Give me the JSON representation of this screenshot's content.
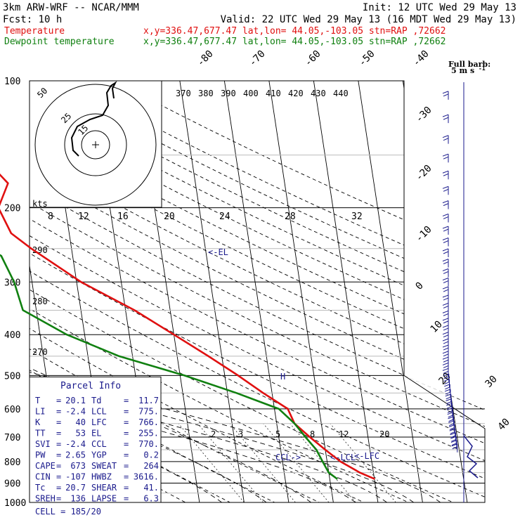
{
  "header": {
    "model": "3km ARW-WRF -- NCAR/MMM",
    "init": "Init: 12 UTC Wed 29 May 13",
    "fcst": "Fcst:   10 h",
    "valid": "Valid: 22 UTC Wed 29 May 13 (16 MDT Wed 29 May 13)",
    "temp_label": "Temperature",
    "dew_label": "Dewpoint temperature",
    "temp_loc": "x,y=336.47,677.47   lat,lon= 44.05,-103.05  stn=RAP ,72662",
    "dew_loc": "x,y=336.47,677.47   lat,lon= 44.05,-103.05  stn=RAP ,72662"
  },
  "colors": {
    "temperature": "#e01010",
    "dewpoint": "#108010",
    "text_blue": "#1a1a8c",
    "grid": "#000000"
  },
  "barb_legend": {
    "title": "Full barb:",
    "value": "5 m s",
    "superscript": "-1"
  },
  "hodograph": {
    "ring_labels": [
      "50",
      "25",
      "15"
    ],
    "speed_labels": [
      "8",
      "12",
      "16",
      "20",
      "24",
      "28",
      "32"
    ],
    "kts_label": "kts"
  },
  "parcel": {
    "title": "Parcel Info",
    "rows": [
      [
        {
          "k": "T",
          "v": "20.1"
        },
        {
          "k": "Td",
          "v": "11.7"
        }
      ],
      [
        {
          "k": "LI",
          "v": "-2.4"
        },
        {
          "k": "LCL",
          "v": "775."
        }
      ],
      [
        {
          "k": "K",
          "v": "40"
        },
        {
          "k": "LFC",
          "v": "766."
        }
      ],
      [
        {
          "k": "TT",
          "v": "53"
        },
        {
          "k": "EL",
          "v": "255."
        }
      ],
      [
        {
          "k": "SVI",
          "v": "-2.4"
        },
        {
          "k": "CCL",
          "v": "770."
        }
      ],
      [
        {
          "k": "PW",
          "v": "2.65"
        },
        {
          "k": "YGP",
          "v": "0.2"
        }
      ],
      [
        {
          "k": "CAPE",
          "v": "673"
        },
        {
          "k": "SWEAT",
          "v": "264"
        }
      ],
      [
        {
          "k": "CIN",
          "v": "-107"
        },
        {
          "k": "HWBZ",
          "v": "3616."
        }
      ],
      [
        {
          "k": "Tc",
          "v": "20.7"
        },
        {
          "k": "SHEAR",
          "v": "41."
        }
      ],
      [
        {
          "k": "SREH",
          "v": "136"
        },
        {
          "k": "LAPSE",
          "v": "6.3"
        }
      ]
    ],
    "cell": "CELL = 185/20"
  },
  "chart_data": {
    "type": "line",
    "subtype": "skew-T log-P sounding",
    "pressure_axis_labels": [
      "100",
      "200",
      "300",
      "400",
      "500",
      "600",
      "700",
      "800",
      "900",
      "1000"
    ],
    "pressure_levels": [
      100,
      200,
      300,
      400,
      500,
      600,
      700,
      800,
      900,
      1000
    ],
    "isotherm_labels": [
      "-80",
      "-70",
      "-60",
      "-50",
      "-40",
      "-30",
      "-20",
      "-10",
      "0",
      "10",
      "20",
      "30",
      "40"
    ],
    "theta_e_labels": [
      "370",
      "380",
      "390",
      "400",
      "410",
      "420",
      "430",
      "440"
    ],
    "dry_adiabat_labels": [
      "290",
      "280",
      "270"
    ],
    "mixing_ratio_labels": [
      "2",
      "3",
      "5",
      "8",
      "12",
      "20"
    ],
    "level_markers": [
      {
        "label": "<-EL",
        "p": 255
      },
      {
        "label": "<-LCL",
        "p": 775
      },
      {
        "label": "<-LFC",
        "p": 766
      },
      {
        "label": "CCL->",
        "p": 770
      },
      {
        "label": "H",
        "p": 495
      }
    ],
    "series": [
      {
        "name": "Temperature",
        "points": [
          [
            100,
            -57
          ],
          [
            130,
            -60
          ],
          [
            150,
            -57
          ],
          [
            175,
            -52
          ],
          [
            200,
            -55
          ],
          [
            230,
            -53
          ],
          [
            250,
            -49
          ],
          [
            300,
            -39
          ],
          [
            350,
            -28
          ],
          [
            400,
            -20
          ],
          [
            450,
            -13
          ],
          [
            500,
            -7
          ],
          [
            550,
            -2
          ],
          [
            600,
            3
          ],
          [
            650,
            4
          ],
          [
            700,
            7
          ],
          [
            750,
            10
          ],
          [
            800,
            13
          ],
          [
            850,
            17
          ],
          [
            880,
            20.1
          ]
        ]
      },
      {
        "name": "Dewpoint temperature",
        "points": [
          [
            100,
            -78
          ],
          [
            130,
            -80
          ],
          [
            150,
            -80
          ],
          [
            170,
            -81
          ],
          [
            190,
            -78
          ],
          [
            200,
            -74
          ],
          [
            230,
            -65
          ],
          [
            260,
            -56
          ],
          [
            300,
            -54
          ],
          [
            350,
            -53
          ],
          [
            400,
            -44
          ],
          [
            450,
            -33
          ],
          [
            500,
            -19
          ],
          [
            550,
            -8
          ],
          [
            600,
            1
          ],
          [
            650,
            4
          ],
          [
            700,
            6
          ],
          [
            750,
            8
          ],
          [
            800,
            9
          ],
          [
            850,
            10
          ],
          [
            880,
            11.7
          ]
        ]
      }
    ]
  }
}
